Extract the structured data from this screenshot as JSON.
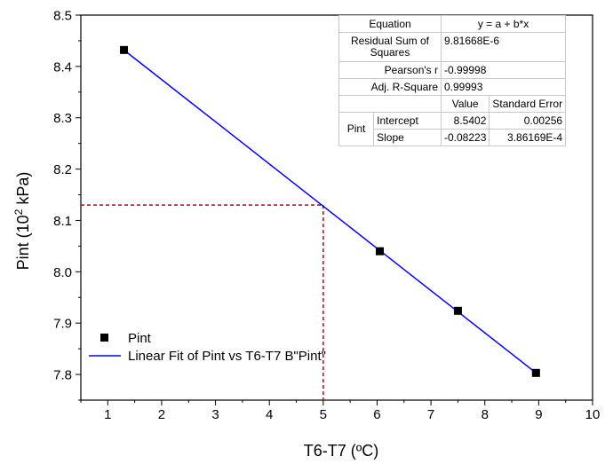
{
  "chart_data": {
    "type": "scatter",
    "xlabel": "T6-T7 (ºC)",
    "ylabel_parts": [
      "Pint (10",
      "2",
      " kPa)"
    ],
    "xlim": [
      0.5,
      10
    ],
    "ylim": [
      7.75,
      8.5
    ],
    "xticks": [
      1,
      2,
      3,
      4,
      5,
      6,
      7,
      8,
      9,
      10
    ],
    "yticks": [
      7.8,
      7.9,
      8.0,
      8.1,
      8.2,
      8.3,
      8.4,
      8.5
    ],
    "ytick_labels": [
      "7.8",
      "7.9",
      "8.0",
      "8.1",
      "8.2",
      "8.3",
      "8.4",
      "8.5"
    ],
    "grid": false,
    "series": [
      {
        "name": "Pint",
        "kind": "scatter",
        "marker": "square",
        "color": "#000000",
        "x": [
          1.3,
          6.05,
          7.5,
          8.95
        ],
        "y": [
          8.432,
          8.04,
          7.924,
          7.803
        ]
      },
      {
        "name": "Linear Fit of Pint vs T6-T7 B\"Pint\"",
        "kind": "line",
        "color": "#0000ff",
        "x": [
          1.3,
          8.95
        ],
        "y": [
          8.432,
          7.803
        ]
      }
    ],
    "reference_lines": {
      "color": "#c00000",
      "style": "dashed",
      "x": 5,
      "y": 8.13
    },
    "legend_position": "bottom-left",
    "stats_table": {
      "equation_label": "Equation",
      "equation": "y = a + b*x",
      "rss_label": "Residual Sum of Squares",
      "rss": "9.81668E-6",
      "pearson_label": "Pearson's r",
      "pearson": "-0.99998",
      "adjr2_label": "Adj. R-Square",
      "adjr2": "0.99993",
      "value_header": "Value",
      "stderr_header": "Standard Error",
      "group_label": "Pint",
      "rows": [
        {
          "name": "Intercept",
          "value": "8.5402",
          "stderr": "0.00256"
        },
        {
          "name": "Slope",
          "value": "-0.08223",
          "stderr": "3.86169E-4"
        }
      ]
    }
  }
}
